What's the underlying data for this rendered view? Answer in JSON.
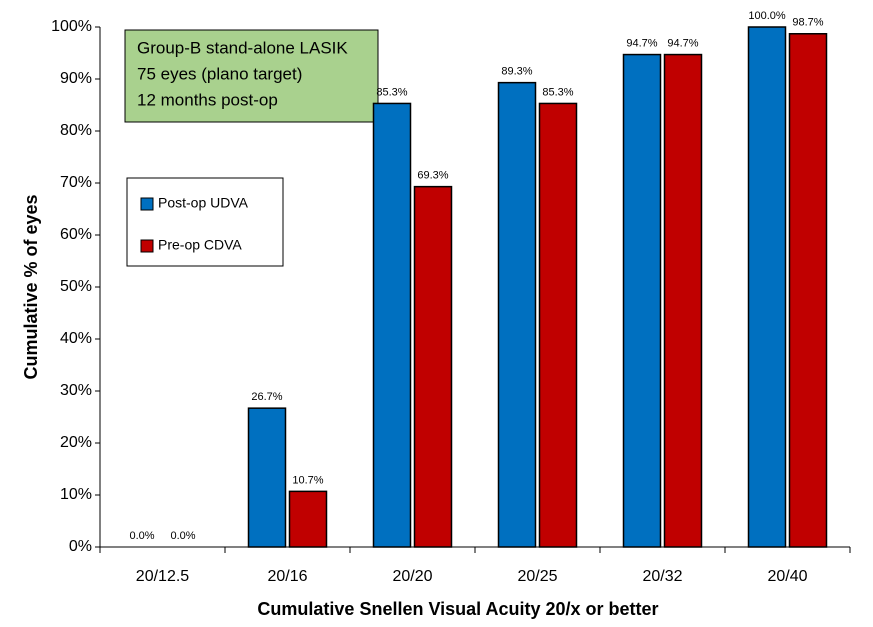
{
  "chart_data": {
    "type": "bar",
    "xlabel": "Cumulative Snellen Visual Acuity 20/x or better",
    "ylabel": "Cumulative % of eyes",
    "annotation": [
      "Group-B stand-alone LASIK",
      "75 eyes (plano target)",
      "12 months post-op"
    ],
    "categories": [
      "20/12.5",
      "20/16",
      "20/20",
      "20/25",
      "20/32",
      "20/40"
    ],
    "series": [
      {
        "name": "Post-op UDVA",
        "color": "#0070c0",
        "label_color": "#1f4e79",
        "values": [
          0,
          26.7,
          85.3,
          89.3,
          94.7,
          100
        ],
        "value_labels": [
          "0.0%",
          "26.7%",
          "85.3%",
          "89.3%",
          "94.7%",
          "100.0%"
        ]
      },
      {
        "name": "Pre-op CDVA",
        "color": "#c00000",
        "label_color": "#c00000",
        "values": [
          0,
          10.7,
          69.3,
          85.3,
          94.7,
          98.7
        ],
        "value_labels": [
          "0.0%",
          "10.7%",
          "69.3%",
          "85.3%",
          "94.7%",
          "98.7%"
        ]
      }
    ],
    "ylim": [
      0,
      100
    ],
    "yticks": [
      {
        "value": 0,
        "label": "0%"
      },
      {
        "value": 10,
        "label": "10%"
      },
      {
        "value": 20,
        "label": "20%"
      },
      {
        "value": 30,
        "label": "30%"
      },
      {
        "value": 40,
        "label": "40%"
      },
      {
        "value": 50,
        "label": "50%"
      },
      {
        "value": 60,
        "label": "60%"
      },
      {
        "value": 70,
        "label": "70%"
      },
      {
        "value": 80,
        "label": "80%"
      },
      {
        "value": 90,
        "label": "90%"
      },
      {
        "value": 100,
        "label": "100%"
      }
    ]
  }
}
